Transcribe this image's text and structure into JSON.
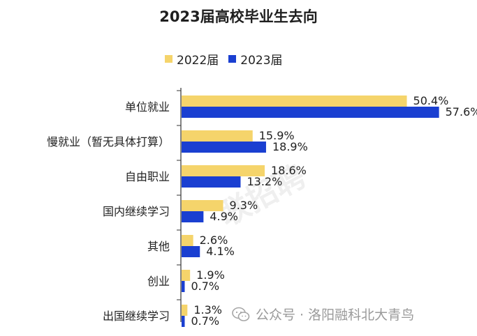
{
  "chart_data": {
    "type": "bar",
    "orientation": "horizontal",
    "title": "2023届高校毕业生去向",
    "categories": [
      "单位就业",
      "慢就业（暂无具体打算）",
      "自由职业",
      "国内继续学习",
      "其他",
      "创业",
      "出国继续学习"
    ],
    "series": [
      {
        "name": "2022届",
        "color": "#f5d46b",
        "values": [
          50.4,
          15.9,
          18.6,
          9.3,
          2.6,
          1.9,
          1.3
        ],
        "labels": [
          "50.4%",
          "15.9%",
          "18.6%",
          "9.3%",
          "2.6%",
          "1.9%",
          "1.3%"
        ]
      },
      {
        "name": "2023届",
        "color": "#1a3fd1",
        "values": [
          57.6,
          18.9,
          13.2,
          4.9,
          4.1,
          0.7,
          0.7
        ],
        "labels": [
          "57.6%",
          "18.9%",
          "13.2%",
          "4.9%",
          "4.1%",
          "0.7%",
          "0.7%"
        ]
      }
    ],
    "value_unit": "%",
    "legend_position": "top-left",
    "grid": false
  },
  "watermark": {
    "text": "公众号 · 洛阳融科北大青鸟",
    "icon": "wechat-icon",
    "diagonal_text": "联招聘"
  }
}
